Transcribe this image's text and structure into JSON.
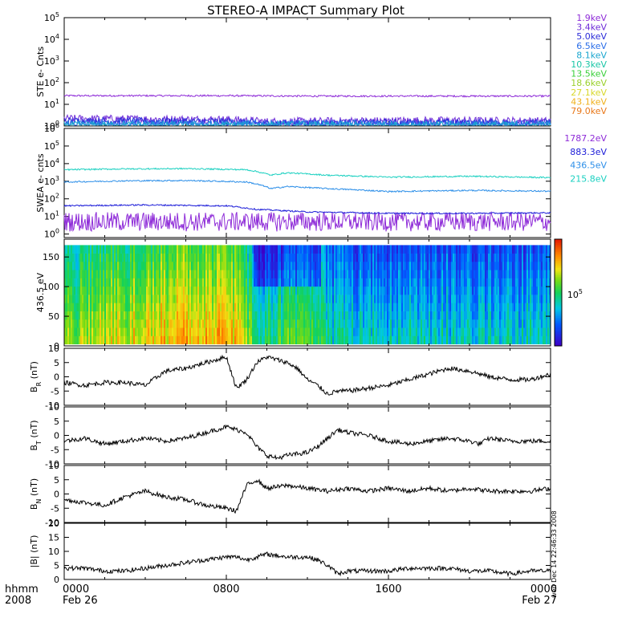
{
  "title": "STEREO-A IMPACT Summary Plot",
  "xaxis": {
    "corner_labels": [
      "hhmm",
      "2008"
    ],
    "ticks": [
      {
        "hour": 0,
        "label": "0000",
        "sublabel": "Feb 26"
      },
      {
        "hour": 8,
        "label": "0800",
        "sublabel": ""
      },
      {
        "hour": 16,
        "label": "1600",
        "sublabel": ""
      },
      {
        "hour": 24,
        "label": "0000",
        "sublabel": "Feb 27"
      }
    ],
    "range": [
      0,
      24
    ]
  },
  "side_stamp": "wen Dec 14 22:46:33 2008",
  "colors": {
    "ste": [
      "#8e2bd8",
      "#6e2bd8",
      "#2b2bd8",
      "#2b6ee8",
      "#19a6cf",
      "#19c6a6",
      "#3ad03a",
      "#9ad02b",
      "#d8d82b",
      "#f0b01a",
      "#e8781a",
      "#e02a1a"
    ],
    "swea": [
      "#8e2bd8",
      "#1a1ad8",
      "#2b8ee8",
      "#19d0c0"
    ],
    "trace": "#000000"
  },
  "chart_data": [
    {
      "type": "line",
      "name": "ste",
      "ylabel": "STE e- Cnts",
      "yscale": "log",
      "ylim_exp": [
        0,
        5
      ],
      "yticks": [
        "10^0",
        "10^1",
        "10^2",
        "10^3",
        "10^4",
        "10^5"
      ],
      "legend": [
        "1.9keV",
        "3.4keV",
        "5.0keV",
        "6.5keV",
        "8.1keV",
        "10.3keV",
        "13.5keV",
        "18.6keV",
        "27.1keV",
        "43.1keV",
        "79.0keV"
      ],
      "series": [
        {
          "x": [
            0,
            4,
            8,
            12,
            16,
            20,
            24
          ],
          "y": [
            25,
            25,
            25,
            24,
            24,
            24,
            24
          ]
        },
        {
          "x": [
            0,
            8,
            10,
            14,
            18,
            24
          ],
          "y": [
            2.2,
            2.0,
            1.6,
            1.7,
            1.8,
            1.7
          ]
        },
        {
          "x": [
            0,
            8,
            10,
            14,
            18,
            24
          ],
          "y": [
            1.7,
            1.6,
            1.3,
            1.4,
            1.4,
            1.4
          ]
        },
        {
          "x": [
            0,
            24
          ],
          "y": [
            1.3,
            1.2
          ]
        },
        {
          "x": [
            0,
            24
          ],
          "y": [
            1.1,
            1.1
          ]
        }
      ]
    },
    {
      "type": "line",
      "name": "swea",
      "ylabel": "SWEA e- cnts",
      "yscale": "log",
      "ylim_exp": [
        -0.2,
        6
      ],
      "yticks": [
        "10^0",
        "10^1",
        "10^2",
        "10^3",
        "10^4",
        "10^5",
        "10^6"
      ],
      "legend": [
        "1787.2eV",
        "883.3eV",
        "436.5eV",
        "215.8eV"
      ],
      "series": [
        {
          "x": [
            0,
            4,
            8,
            12,
            16,
            20,
            24
          ],
          "y": [
            5,
            5,
            5,
            5,
            5,
            5,
            5
          ]
        },
        {
          "x": [
            0,
            4,
            8,
            9.5,
            12,
            16,
            20,
            24
          ],
          "y": [
            40,
            45,
            40,
            25,
            18,
            15,
            15,
            16
          ]
        },
        {
          "x": [
            0,
            3,
            6,
            9,
            10.2,
            11,
            13,
            16,
            18,
            20,
            24
          ],
          "y": [
            900,
            1050,
            1100,
            900,
            380,
            500,
            380,
            260,
            280,
            300,
            270
          ]
        },
        {
          "x": [
            0,
            3,
            6,
            9,
            10.2,
            11,
            13,
            16,
            18,
            20,
            24
          ],
          "y": [
            4500,
            5000,
            5200,
            4500,
            2200,
            3000,
            2200,
            1700,
            1800,
            1900,
            1600
          ]
        }
      ]
    },
    {
      "type": "heatmap",
      "name": "pad",
      "ylabel": "436.5 eV",
      "ylim": [
        0,
        180
      ],
      "yticks": [
        0,
        50,
        100,
        150
      ],
      "colorbar_label": "10^5",
      "profile": [
        {
          "x": 0,
          "level": 0.62
        },
        {
          "x": 3,
          "level": 0.72
        },
        {
          "x": 6,
          "level": 0.82
        },
        {
          "x": 8.5,
          "level": 0.78
        },
        {
          "x": 9.5,
          "level": 0.45
        },
        {
          "x": 11,
          "level": 0.55
        },
        {
          "x": 12.5,
          "level": 0.58
        },
        {
          "x": 13,
          "level": 0.4
        },
        {
          "x": 18,
          "level": 0.38
        },
        {
          "x": 24,
          "level": 0.4
        }
      ]
    },
    {
      "type": "line",
      "name": "br",
      "ylabel": "B_R (nT)",
      "ylim": [
        -10,
        10
      ],
      "yticks": [
        -10,
        -5,
        0,
        5,
        10
      ],
      "x": [
        0,
        1,
        2,
        3,
        4,
        5,
        6,
        7,
        7.5,
        8,
        8.5,
        9,
        9.5,
        10,
        10.5,
        11,
        11.5,
        12,
        12.5,
        13,
        13.5,
        14,
        15,
        16,
        17,
        18,
        18.5,
        19,
        20,
        21,
        22,
        23,
        24
      ],
      "y": [
        -2,
        -3,
        -2,
        -2,
        -3,
        2,
        3,
        5,
        6,
        7,
        -4,
        -1,
        5,
        7,
        6,
        5,
        3,
        -1,
        -3,
        -6,
        -5,
        -5,
        -4,
        -3,
        -1,
        1,
        2,
        3,
        2,
        0,
        -1,
        -1,
        1
      ]
    },
    {
      "type": "line",
      "name": "bt",
      "ylabel": "B_T (nT)",
      "ylim": [
        -10,
        10
      ],
      "yticks": [
        -10,
        -5,
        0,
        5,
        10
      ],
      "x": [
        0,
        1,
        2,
        3,
        4,
        5,
        6,
        7,
        8,
        9,
        9.5,
        10,
        10.5,
        11,
        12,
        12.5,
        13,
        13.5,
        14,
        15,
        16,
        17,
        18,
        19,
        20,
        20.5,
        21,
        22,
        23,
        24
      ],
      "y": [
        -2,
        -1,
        -3,
        -2,
        -1,
        -2,
        -1,
        1,
        3,
        1,
        -4,
        -7,
        -8,
        -7,
        -6,
        -4,
        -1,
        2,
        1,
        0,
        -2,
        -3,
        -2,
        -1,
        -2,
        -3,
        -1,
        -2,
        -2,
        -2
      ]
    },
    {
      "type": "line",
      "name": "bn",
      "ylabel": "B_N (nT)",
      "ylim": [
        -10,
        10
      ],
      "yticks": [
        -10,
        -5,
        0,
        5,
        10
      ],
      "x": [
        0,
        1,
        2,
        3,
        4,
        5,
        6,
        7,
        8,
        8.5,
        9,
        9.5,
        10,
        11,
        12,
        13,
        14,
        15,
        16,
        17,
        18,
        19,
        20,
        21,
        22,
        23,
        24
      ],
      "y": [
        -2,
        -3,
        -4,
        -1,
        1,
        -1,
        -2,
        -4,
        -5,
        -6,
        3,
        5,
        2,
        3,
        2,
        1,
        2,
        1,
        2,
        1,
        2,
        1,
        2,
        1,
        1,
        1,
        2
      ]
    },
    {
      "type": "line",
      "name": "bmag",
      "ylabel": "|B| (nT)",
      "ylim": [
        0,
        20
      ],
      "yticks": [
        0,
        5,
        10,
        15,
        20
      ],
      "x": [
        0,
        1,
        2,
        3,
        4,
        5,
        6,
        7,
        8,
        8.5,
        9,
        10,
        11,
        12,
        12.5,
        13,
        13.5,
        14,
        15,
        16,
        17,
        18,
        19,
        20,
        21,
        22,
        23,
        24
      ],
      "y": [
        4,
        4,
        3,
        3,
        4,
        5,
        6,
        7,
        8,
        8,
        7,
        9,
        8,
        8,
        7,
        5,
        2,
        3,
        3,
        3,
        4,
        4,
        4,
        3,
        3,
        2,
        3,
        3
      ]
    }
  ]
}
